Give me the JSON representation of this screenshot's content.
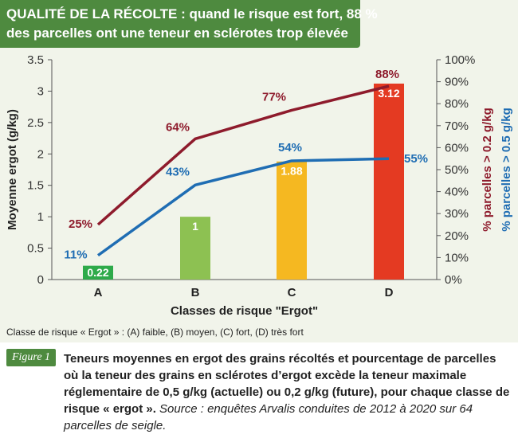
{
  "title": {
    "line1": "QUALITÉ DE LA RÉCOLTE : quand le risque est fort, 88 %",
    "line2": "des parcelles ont une teneur en sclérotes trop élevée"
  },
  "chart_data": {
    "type": "bar",
    "categories": [
      "A",
      "B",
      "C",
      "D"
    ],
    "xlabel": "Classes de risque \"Ergot\"",
    "ylabel": "Moyenne ergot (g/kg)",
    "ylim": [
      0,
      3.5
    ],
    "y_ticks": [
      "0",
      "0.5",
      "1",
      "1.5",
      "2",
      "2.5",
      "3",
      "3.5"
    ],
    "y2label_1": "% parcelles > 0.2 g/kg",
    "y2label_2": "% parcelles > 0.5 g/kg",
    "y2lim": [
      0,
      100
    ],
    "y2_ticks": [
      "0%",
      "10%",
      "20%",
      "30%",
      "40%",
      "50%",
      "60%",
      "70%",
      "80%",
      "90%",
      "100%"
    ],
    "bars": {
      "values": [
        0.22,
        1,
        1.88,
        3.12
      ],
      "labels": [
        "0.22",
        "1",
        "1.88",
        "3.12"
      ],
      "colors": [
        "#2eaa4a",
        "#8dc152",
        "#f5b821",
        "#e43a22"
      ]
    },
    "series": [
      {
        "axis": "right",
        "color": "#8e1b2c",
        "values": [
          25,
          64,
          77,
          88
        ],
        "labels": [
          "25%",
          "64%",
          "77%",
          "88%"
        ]
      },
      {
        "axis": "right",
        "color": "#1f6db3",
        "values": [
          11,
          43,
          54,
          55
        ],
        "labels": [
          "11%",
          "43%",
          "54%",
          "55%"
        ]
      }
    ],
    "grid": false
  },
  "caption": "Classe de risque « Ergot » : (A) faible, (B) moyen, (C) fort, (D) très fort",
  "figure": {
    "badge": "Figure 1",
    "description": "Teneurs moyennes en ergot des grains récoltés et pourcentage de parcelles où la teneur des grains en sclérotes d’ergot excède la teneur maximale réglementaire de 0,5 g/kg (actuelle) ou 0,2 g/kg (future), pour chaque classe de risque « ergot ».",
    "source": "Source : enquêtes Arvalis conduites de 2012 à 2020 sur 64 parcelles de seigle."
  },
  "colors": {
    "banner": "#4e8a3f",
    "background": "#f1f4ea"
  }
}
